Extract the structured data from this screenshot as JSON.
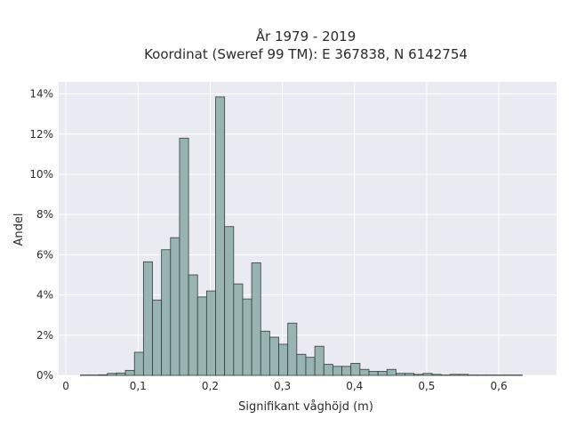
{
  "chart_data": {
    "type": "bar",
    "title_lines": [
      "År 1979 - 2019",
      "Koordinat (Sweref 99 TM): E 367838, N 6142754"
    ],
    "xlabel": "Signifikant våghöjd (m)",
    "ylabel": "Andel",
    "xlim": [
      -0.01,
      0.68
    ],
    "ylim": [
      0,
      14.6
    ],
    "x_ticks": [
      0,
      0.1,
      0.2,
      0.3,
      0.4,
      0.5,
      0.6
    ],
    "x_tick_labels": [
      "0",
      "0,1",
      "0,2",
      "0,3",
      "0,4",
      "0,5",
      "0,6"
    ],
    "y_ticks": [
      0,
      2,
      4,
      6,
      8,
      10,
      12,
      14
    ],
    "y_tick_labels": [
      "0%",
      "2%",
      "4%",
      "6%",
      "8%",
      "10%",
      "12%",
      "14%"
    ],
    "bin_width": 0.0125,
    "bin_starts": [
      0.02,
      0.0325,
      0.045,
      0.0575,
      0.07,
      0.0825,
      0.095,
      0.1075,
      0.12,
      0.1325,
      0.145,
      0.1575,
      0.17,
      0.1825,
      0.195,
      0.2075,
      0.22,
      0.2325,
      0.245,
      0.2575,
      0.27,
      0.2825,
      0.295,
      0.3075,
      0.32,
      0.3325,
      0.345,
      0.3575,
      0.37,
      0.3825,
      0.395,
      0.4075,
      0.42,
      0.4325,
      0.445,
      0.4575,
      0.47,
      0.4825,
      0.495,
      0.5075,
      0.52,
      0.5325,
      0.545,
      0.5575,
      0.57,
      0.5825,
      0.595,
      0.6075,
      0.62
    ],
    "values": [
      0.02,
      0.02,
      0.03,
      0.1,
      0.12,
      0.25,
      1.15,
      5.65,
      3.75,
      6.25,
      6.85,
      11.8,
      5.0,
      3.9,
      4.2,
      13.85,
      7.4,
      4.55,
      3.8,
      5.6,
      2.2,
      1.9,
      1.55,
      2.6,
      1.05,
      0.9,
      1.45,
      0.55,
      0.45,
      0.45,
      0.6,
      0.3,
      0.2,
      0.2,
      0.3,
      0.1,
      0.1,
      0.05,
      0.1,
      0.05,
      0.02,
      0.05,
      0.05,
      0.02,
      0.02,
      0.02,
      0.02,
      0.02,
      0.02
    ],
    "colors": {
      "bar_fill": "#98b3b2",
      "bar_edge": "#2f3e3e",
      "plot_bg": "#eaeaf2",
      "grid": "#ffffff"
    },
    "grid": true
  }
}
